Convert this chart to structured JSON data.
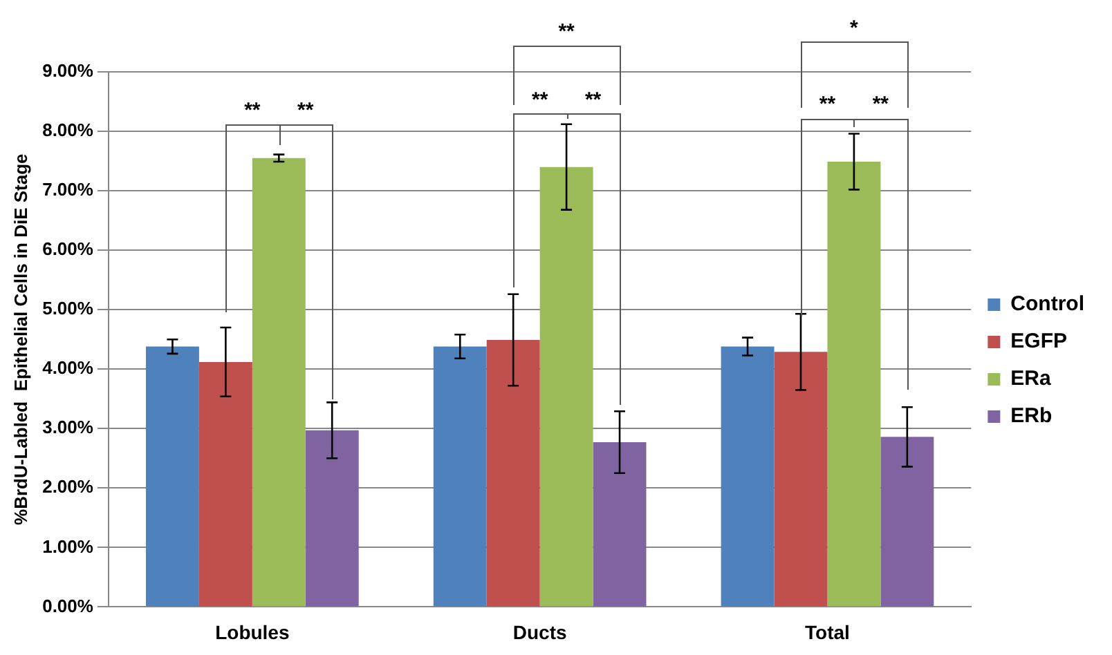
{
  "chart_data": {
    "type": "bar",
    "ylabel": "%BrdU-Labled  Epithelial Cells in DiE Stage",
    "categories": [
      "Lobules",
      "Ducts",
      "Total"
    ],
    "series": [
      {
        "name": "Control",
        "color": "#4f81bd",
        "values": [
          4.38,
          4.38,
          4.38
        ],
        "errors": [
          0.12,
          0.2,
          0.15
        ]
      },
      {
        "name": "EGFP",
        "color": "#c0504d",
        "values": [
          4.12,
          4.49,
          4.29
        ],
        "errors": [
          0.58,
          0.77,
          0.64
        ]
      },
      {
        "name": "ERa",
        "color": "#9bbb59",
        "values": [
          7.55,
          7.4,
          7.49
        ],
        "errors": [
          0.06,
          0.72,
          0.47
        ]
      },
      {
        "name": "ERb",
        "color": "#8064a2",
        "values": [
          2.97,
          2.77,
          2.86
        ],
        "errors": [
          0.47,
          0.52,
          0.5
        ]
      }
    ],
    "ylim": [
      0,
      9
    ],
    "yticks": [
      {
        "value": 0,
        "label": "0.00%"
      },
      {
        "value": 1,
        "label": "1.00%"
      },
      {
        "value": 2,
        "label": "2.00%"
      },
      {
        "value": 3,
        "label": "3.00%"
      },
      {
        "value": 4,
        "label": "4.00%"
      },
      {
        "value": 5,
        "label": "5.00%"
      },
      {
        "value": 6,
        "label": "6.00%"
      },
      {
        "value": 7,
        "label": "7.00%"
      },
      {
        "value": 8,
        "label": "8.00%"
      },
      {
        "value": 9,
        "label": "9.00%"
      }
    ],
    "grid": "y",
    "legend": "right",
    "annotations": [
      "**",
      "**",
      "**",
      "**",
      "**",
      "*",
      "**",
      "**"
    ]
  }
}
